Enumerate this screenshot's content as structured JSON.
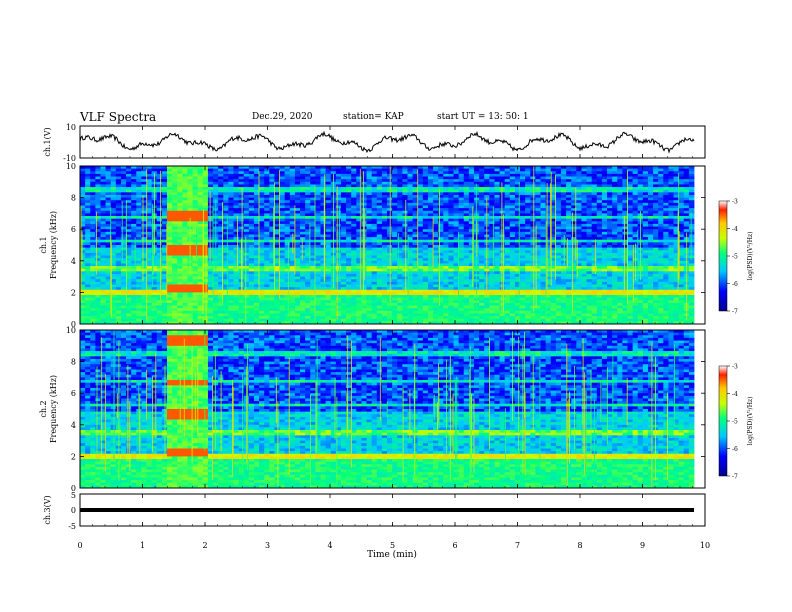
{
  "header": {
    "title": "VLF Spectra",
    "date": "Dec.29, 2020",
    "station": "station= KAP",
    "start": "start  UT =   13: 50: 1"
  },
  "chart_data": [
    {
      "type": "line",
      "panel": "ch1-waveform",
      "ylabel": "ch.1(V)",
      "ylim": [
        -10,
        10
      ],
      "yticks": [
        10,
        -10
      ],
      "xlim": [
        0,
        10
      ]
    },
    {
      "type": "heatmap",
      "panel": "ch1-spectrogram",
      "ylabel_lines": [
        "ch.1",
        "Frequency (kHz)"
      ],
      "ylim": [
        0,
        10
      ],
      "yticks": [
        0,
        2,
        4,
        6,
        8,
        10
      ],
      "xlim": [
        0,
        10
      ],
      "colorbar": {
        "range": [
          -7,
          -3
        ],
        "ticks": [
          -3,
          -4,
          -5,
          -6,
          -7
        ],
        "label": "log(PSD)(V²/Hz)"
      }
    },
    {
      "type": "heatmap",
      "panel": "ch2-spectrogram",
      "ylabel_lines": [
        "ch.2",
        "Frequency (kHz)"
      ],
      "ylim": [
        0,
        10
      ],
      "yticks": [
        0,
        2,
        4,
        6,
        8,
        10
      ],
      "xlim": [
        0,
        10
      ],
      "colorbar": {
        "range": [
          -7,
          -3
        ],
        "ticks": [
          -3,
          -4,
          -5,
          -6,
          -7
        ],
        "label": "log(PSD)(V²/Hz)"
      }
    },
    {
      "type": "line",
      "panel": "ch3-waveform",
      "ylabel": "ch.3(V)",
      "ylim": [
        -5,
        5
      ],
      "yticks": [
        5,
        0,
        -5
      ],
      "xlim": [
        0,
        10
      ],
      "xlabel": "Time (min)",
      "xticks": [
        0,
        1,
        2,
        3,
        4,
        5,
        6,
        7,
        8,
        9,
        10
      ]
    }
  ]
}
